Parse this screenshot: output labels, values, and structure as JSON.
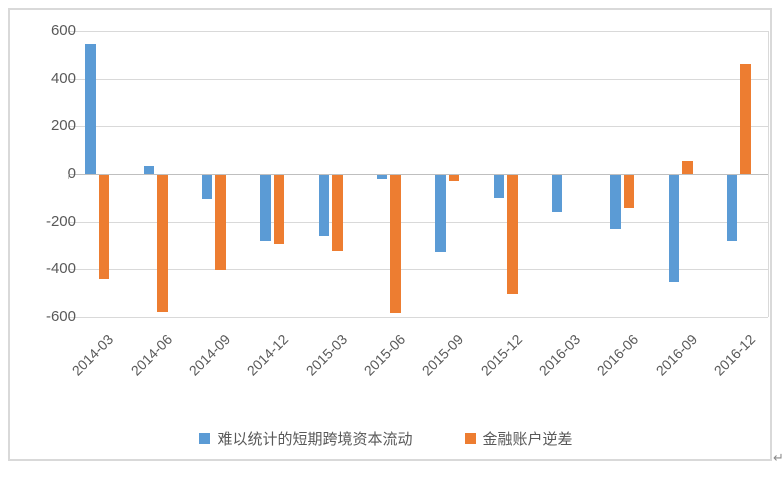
{
  "chart_data": {
    "type": "bar",
    "title": "",
    "categories": [
      "2014-03",
      "2014-06",
      "2014-09",
      "2014-12",
      "2015-03",
      "2015-06",
      "2015-09",
      "2015-12",
      "2016-03",
      "2016-06",
      "2016-09",
      "2016-12"
    ],
    "series": [
      {
        "name": "难以统计的短期跨境资本流动",
        "color": "#5B9BD5",
        "values": [
          545,
          35,
          -100,
          -275,
          -255,
          -15,
          -325,
          -95,
          -155,
          -225,
          -450,
          -275
        ]
      },
      {
        "name": "金融账户逆差",
        "color": "#ED7D31",
        "values": [
          -435,
          -575,
          -400,
          -290,
          -320,
          -580,
          -25,
          -500,
          0,
          -140,
          55,
          460
        ]
      }
    ],
    "ylim": [
      -600,
      600
    ],
    "yticks": [
      600,
      400,
      200,
      0,
      -200,
      -400,
      -600
    ],
    "ytick_labels": [
      "600",
      "400",
      "200",
      "0",
      "-200",
      "-400",
      "-600"
    ],
    "grid": true,
    "legend_position": "bottom",
    "xlabel": "",
    "ylabel": ""
  },
  "colors": {
    "series_blue": "#5B9BD5",
    "series_orange": "#ED7D31",
    "gridline": "#D9D9D9",
    "axis_line": "#BFBFBF",
    "text": "#595959",
    "frame_border": "#D9D9D9"
  },
  "decorations": {
    "linebreak_mark": "↵"
  }
}
